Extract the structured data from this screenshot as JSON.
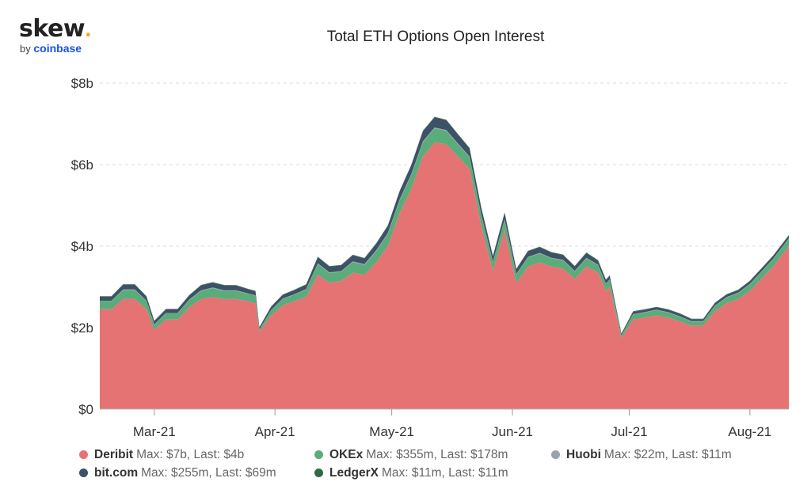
{
  "logo": {
    "word": "skew",
    "dot": ".",
    "by": "by",
    "brand": "coinbase"
  },
  "chart_data": {
    "type": "area",
    "stacked": true,
    "title": "Total ETH Options Open Interest",
    "y_ticks": [
      "$0",
      "$2b",
      "$4b",
      "$6b",
      "$8b"
    ],
    "ylim": [
      0,
      8
    ],
    "y_unit": "billions USD",
    "x_ticks": [
      "Mar-21",
      "Apr-21",
      "May-21",
      "Jun-21",
      "Jul-21",
      "Aug-21"
    ],
    "xlim": [
      "2021-02-15",
      "2021-08-11"
    ],
    "grid": "horizontal dashed",
    "legend_position": "bottom",
    "colors": {
      "Deribit": "#e57373",
      "OKEx": "#5aac7a",
      "Huobi": "#9aa3ad",
      "bit.com": "#3d5266",
      "LedgerX": "#2e6b45"
    },
    "x": [
      "2021-02-15",
      "2021-02-18",
      "2021-02-21",
      "2021-02-24",
      "2021-02-27",
      "2021-03-01",
      "2021-03-04",
      "2021-03-07",
      "2021-03-10",
      "2021-03-13",
      "2021-03-16",
      "2021-03-19",
      "2021-03-22",
      "2021-03-25",
      "2021-03-27",
      "2021-03-28",
      "2021-03-31",
      "2021-04-03",
      "2021-04-06",
      "2021-04-09",
      "2021-04-12",
      "2021-04-15",
      "2021-04-18",
      "2021-04-21",
      "2021-04-24",
      "2021-04-27",
      "2021-04-30",
      "2021-05-03",
      "2021-05-06",
      "2021-05-09",
      "2021-05-12",
      "2021-05-15",
      "2021-05-18",
      "2021-05-21",
      "2021-05-24",
      "2021-05-27",
      "2021-05-30",
      "2021-06-02",
      "2021-06-05",
      "2021-06-08",
      "2021-06-11",
      "2021-06-14",
      "2021-06-17",
      "2021-06-20",
      "2021-06-23",
      "2021-06-25",
      "2021-06-26",
      "2021-06-29",
      "2021-07-02",
      "2021-07-05",
      "2021-07-08",
      "2021-07-11",
      "2021-07-14",
      "2021-07-17",
      "2021-07-20",
      "2021-07-23",
      "2021-07-26",
      "2021-07-29",
      "2021-08-01",
      "2021-08-04",
      "2021-08-07",
      "2021-08-11"
    ],
    "series": [
      {
        "name": "Deribit",
        "max_label": "Max: $7b, Last: $4b",
        "values": [
          2.45,
          2.45,
          2.7,
          2.7,
          2.45,
          1.95,
          2.2,
          2.2,
          2.5,
          2.7,
          2.75,
          2.7,
          2.7,
          2.65,
          2.6,
          1.9,
          2.3,
          2.55,
          2.65,
          2.75,
          3.3,
          3.1,
          3.15,
          3.35,
          3.3,
          3.6,
          4.0,
          4.8,
          5.4,
          6.2,
          6.55,
          6.5,
          6.2,
          5.9,
          4.5,
          3.4,
          4.4,
          3.1,
          3.5,
          3.6,
          3.5,
          3.45,
          3.2,
          3.5,
          3.35,
          2.9,
          3.0,
          1.75,
          2.2,
          2.25,
          2.3,
          2.25,
          2.15,
          2.05,
          2.05,
          2.4,
          2.6,
          2.7,
          2.9,
          3.2,
          3.5,
          4.0
        ]
      },
      {
        "name": "OKEx",
        "max_label": "Max: $355m, Last: $178m",
        "values": [
          0.2,
          0.2,
          0.22,
          0.22,
          0.2,
          0.12,
          0.15,
          0.15,
          0.18,
          0.2,
          0.22,
          0.2,
          0.2,
          0.18,
          0.18,
          0.05,
          0.12,
          0.15,
          0.16,
          0.18,
          0.26,
          0.24,
          0.22,
          0.26,
          0.24,
          0.28,
          0.3,
          0.32,
          0.34,
          0.35,
          0.34,
          0.33,
          0.3,
          0.28,
          0.25,
          0.2,
          0.24,
          0.2,
          0.22,
          0.22,
          0.2,
          0.2,
          0.18,
          0.2,
          0.18,
          0.17,
          0.17,
          0.05,
          0.12,
          0.12,
          0.13,
          0.12,
          0.12,
          0.1,
          0.1,
          0.13,
          0.14,
          0.15,
          0.16,
          0.17,
          0.18,
          0.18
        ]
      },
      {
        "name": "Huobi",
        "max_label": "Max: $22m, Last: $11m",
        "values": [
          0.01,
          0.01,
          0.015,
          0.015,
          0.01,
          0.01,
          0.01,
          0.01,
          0.012,
          0.015,
          0.015,
          0.015,
          0.015,
          0.012,
          0.012,
          0.005,
          0.01,
          0.012,
          0.012,
          0.013,
          0.018,
          0.017,
          0.016,
          0.018,
          0.017,
          0.019,
          0.02,
          0.021,
          0.022,
          0.022,
          0.021,
          0.021,
          0.02,
          0.019,
          0.017,
          0.015,
          0.017,
          0.014,
          0.015,
          0.015,
          0.014,
          0.014,
          0.013,
          0.014,
          0.013,
          0.012,
          0.012,
          0.005,
          0.01,
          0.01,
          0.01,
          0.01,
          0.01,
          0.009,
          0.009,
          0.01,
          0.01,
          0.011,
          0.011,
          0.011,
          0.011,
          0.011
        ]
      },
      {
        "name": "bit.com",
        "max_label": "Max: $255m, Last: $69m",
        "values": [
          0.1,
          0.1,
          0.12,
          0.12,
          0.1,
          0.08,
          0.09,
          0.09,
          0.1,
          0.12,
          0.12,
          0.12,
          0.12,
          0.1,
          0.1,
          0.05,
          0.08,
          0.09,
          0.1,
          0.11,
          0.15,
          0.14,
          0.14,
          0.15,
          0.14,
          0.16,
          0.18,
          0.2,
          0.22,
          0.25,
          0.25,
          0.24,
          0.22,
          0.2,
          0.17,
          0.14,
          0.16,
          0.12,
          0.14,
          0.14,
          0.13,
          0.12,
          0.11,
          0.12,
          0.1,
          0.09,
          0.09,
          0.04,
          0.06,
          0.06,
          0.06,
          0.06,
          0.06,
          0.05,
          0.05,
          0.06,
          0.06,
          0.06,
          0.07,
          0.07,
          0.07,
          0.069
        ]
      },
      {
        "name": "LedgerX",
        "max_label": "Max: $11m, Last: $11m",
        "values": [
          0.011,
          0.011,
          0.011,
          0.011,
          0.011,
          0.011,
          0.011,
          0.011,
          0.011,
          0.011,
          0.011,
          0.011,
          0.011,
          0.011,
          0.011,
          0.011,
          0.011,
          0.011,
          0.011,
          0.011,
          0.011,
          0.011,
          0.011,
          0.011,
          0.011,
          0.011,
          0.011,
          0.011,
          0.011,
          0.011,
          0.011,
          0.011,
          0.011,
          0.011,
          0.011,
          0.011,
          0.011,
          0.011,
          0.011,
          0.011,
          0.011,
          0.011,
          0.011,
          0.011,
          0.011,
          0.011,
          0.011,
          0.011,
          0.011,
          0.011,
          0.011,
          0.011,
          0.011,
          0.011,
          0.011,
          0.011,
          0.011,
          0.011,
          0.011,
          0.011,
          0.011,
          0.011
        ]
      }
    ]
  }
}
